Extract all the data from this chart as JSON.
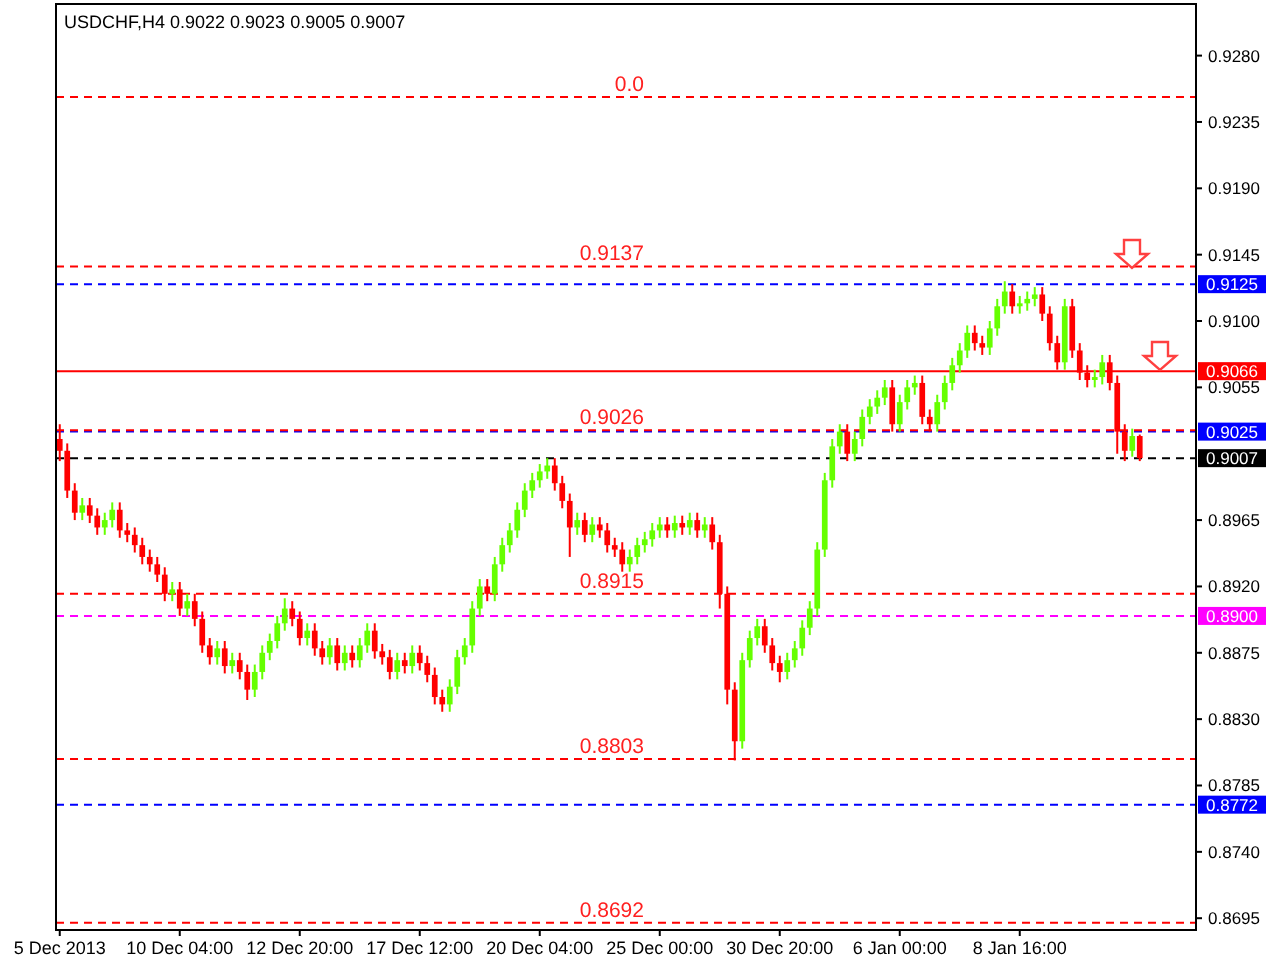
{
  "chart_data": {
    "type": "candlestick",
    "title": "USDCHF,H4  0.9022 0.9023 0.9005 0.9007",
    "categories": [
      "5 Dec 2013",
      null,
      null,
      null,
      null,
      null,
      null,
      null,
      null,
      null,
      null,
      null,
      null,
      null,
      null,
      null,
      "10 Dec 04:00",
      null,
      null,
      null,
      null,
      null,
      null,
      null,
      null,
      null,
      null,
      null,
      null,
      null,
      null,
      null,
      "12 Dec 20:00",
      null,
      null,
      null,
      null,
      null,
      null,
      null,
      null,
      null,
      null,
      null,
      null,
      null,
      null,
      null,
      "17 Dec 12:00",
      null,
      null,
      null,
      null,
      null,
      null,
      null,
      null,
      null,
      null,
      null,
      null,
      null,
      null,
      null,
      "20 Dec 04:00",
      null,
      null,
      null,
      null,
      null,
      null,
      null,
      null,
      null,
      null,
      null,
      null,
      null,
      null,
      null,
      "25 Dec 00:00",
      null,
      null,
      null,
      null,
      null,
      null,
      null,
      null,
      null,
      null,
      null,
      null,
      null,
      null,
      null,
      "30 Dec 20:00",
      null,
      null,
      null,
      null,
      null,
      null,
      null,
      null,
      null,
      null,
      null,
      null,
      null,
      null,
      null,
      "6 Jan 00:00",
      null,
      null,
      null,
      null,
      null,
      null,
      null,
      null,
      null,
      null,
      null,
      null,
      null,
      null,
      null,
      "8 Jan 16:00",
      null,
      null,
      null,
      null,
      null,
      null,
      null,
      null,
      null,
      null,
      null,
      null,
      null,
      null,
      null,
      null
    ],
    "ohlc": [
      [
        0.902,
        0.903,
        0.9005,
        0.9012
      ],
      [
        0.9012,
        0.9017,
        0.898,
        0.8985
      ],
      [
        0.8985,
        0.899,
        0.8965,
        0.897
      ],
      [
        0.897,
        0.898,
        0.8965,
        0.8975
      ],
      [
        0.8975,
        0.898,
        0.8963,
        0.8968
      ],
      [
        0.8968,
        0.8973,
        0.8955,
        0.896
      ],
      [
        0.896,
        0.897,
        0.8955,
        0.8965
      ],
      [
        0.8965,
        0.8977,
        0.896,
        0.8972
      ],
      [
        0.8972,
        0.8977,
        0.8953,
        0.8958
      ],
      [
        0.8958,
        0.8963,
        0.895,
        0.8955
      ],
      [
        0.8955,
        0.896,
        0.8943,
        0.8948
      ],
      [
        0.8948,
        0.8953,
        0.8935,
        0.894
      ],
      [
        0.894,
        0.8945,
        0.893,
        0.8935
      ],
      [
        0.8935,
        0.894,
        0.8923,
        0.8928
      ],
      [
        0.8928,
        0.8933,
        0.891,
        0.8915
      ],
      [
        0.8915,
        0.8923,
        0.891,
        0.8918
      ],
      [
        0.8918,
        0.8923,
        0.89,
        0.8905
      ],
      [
        0.8905,
        0.8915,
        0.89,
        0.891
      ],
      [
        0.891,
        0.8915,
        0.8893,
        0.8898
      ],
      [
        0.8898,
        0.8903,
        0.8875,
        0.888
      ],
      [
        0.888,
        0.8885,
        0.8867,
        0.8872
      ],
      [
        0.8872,
        0.8883,
        0.8867,
        0.8878
      ],
      [
        0.8878,
        0.8883,
        0.8861,
        0.8866
      ],
      [
        0.8866,
        0.8875,
        0.8861,
        0.887
      ],
      [
        0.887,
        0.8875,
        0.8857,
        0.8862
      ],
      [
        0.8862,
        0.8867,
        0.8843,
        0.885
      ],
      [
        0.885,
        0.8867,
        0.8845,
        0.8862
      ],
      [
        0.8862,
        0.888,
        0.8857,
        0.8875
      ],
      [
        0.8875,
        0.8888,
        0.887,
        0.8883
      ],
      [
        0.8883,
        0.89,
        0.8878,
        0.8895
      ],
      [
        0.8895,
        0.8912,
        0.889,
        0.8905
      ],
      [
        0.8905,
        0.891,
        0.8893,
        0.8898
      ],
      [
        0.8898,
        0.8903,
        0.888,
        0.8885
      ],
      [
        0.8885,
        0.8895,
        0.888,
        0.889
      ],
      [
        0.889,
        0.8895,
        0.8873,
        0.8878
      ],
      [
        0.8878,
        0.8883,
        0.8867,
        0.8872
      ],
      [
        0.8872,
        0.8885,
        0.8867,
        0.888
      ],
      [
        0.888,
        0.8885,
        0.8863,
        0.8868
      ],
      [
        0.8868,
        0.888,
        0.8863,
        0.8875
      ],
      [
        0.8875,
        0.888,
        0.8865,
        0.887
      ],
      [
        0.887,
        0.8885,
        0.8865,
        0.888
      ],
      [
        0.888,
        0.8895,
        0.8875,
        0.889
      ],
      [
        0.889,
        0.8895,
        0.8871,
        0.8876
      ],
      [
        0.8876,
        0.8881,
        0.8867,
        0.8872
      ],
      [
        0.8872,
        0.8877,
        0.8857,
        0.8862
      ],
      [
        0.8862,
        0.8875,
        0.8857,
        0.887
      ],
      [
        0.887,
        0.8875,
        0.8861,
        0.8866
      ],
      [
        0.8866,
        0.888,
        0.8861,
        0.8875
      ],
      [
        0.8875,
        0.888,
        0.8863,
        0.8868
      ],
      [
        0.8868,
        0.8873,
        0.8855,
        0.886
      ],
      [
        0.886,
        0.8865,
        0.884,
        0.8845
      ],
      [
        0.8845,
        0.885,
        0.8835,
        0.884
      ],
      [
        0.884,
        0.8857,
        0.8835,
        0.8852
      ],
      [
        0.8852,
        0.8877,
        0.8847,
        0.8872
      ],
      [
        0.8872,
        0.8885,
        0.8867,
        0.888
      ],
      [
        0.888,
        0.891,
        0.8875,
        0.8905
      ],
      [
        0.8905,
        0.8925,
        0.89,
        0.892
      ],
      [
        0.892,
        0.8925,
        0.891,
        0.8915
      ],
      [
        0.8915,
        0.894,
        0.891,
        0.8935
      ],
      [
        0.8935,
        0.8953,
        0.893,
        0.8948
      ],
      [
        0.8948,
        0.8963,
        0.8943,
        0.8958
      ],
      [
        0.8958,
        0.8977,
        0.8953,
        0.8972
      ],
      [
        0.8972,
        0.899,
        0.8967,
        0.8985
      ],
      [
        0.8985,
        0.8997,
        0.898,
        0.8992
      ],
      [
        0.8992,
        0.9003,
        0.8987,
        0.8998
      ],
      [
        0.8998,
        0.9007,
        0.8993,
        0.9002
      ],
      [
        0.9002,
        0.9007,
        0.8985,
        0.899
      ],
      [
        0.899,
        0.8995,
        0.8973,
        0.8978
      ],
      [
        0.8978,
        0.8983,
        0.894,
        0.896
      ],
      [
        0.896,
        0.897,
        0.8955,
        0.8965
      ],
      [
        0.8965,
        0.897,
        0.895,
        0.8955
      ],
      [
        0.8955,
        0.8967,
        0.895,
        0.8962
      ],
      [
        0.8962,
        0.8967,
        0.8953,
        0.8958
      ],
      [
        0.8958,
        0.8963,
        0.8943,
        0.8948
      ],
      [
        0.8948,
        0.8953,
        0.894,
        0.8945
      ],
      [
        0.8945,
        0.895,
        0.893,
        0.8935
      ],
      [
        0.8935,
        0.8945,
        0.893,
        0.894
      ],
      [
        0.894,
        0.8953,
        0.8935,
        0.8948
      ],
      [
        0.8948,
        0.8957,
        0.8943,
        0.8952
      ],
      [
        0.8952,
        0.8963,
        0.8947,
        0.8958
      ],
      [
        0.8958,
        0.8967,
        0.8953,
        0.8962
      ],
      [
        0.8962,
        0.8967,
        0.8953,
        0.8958
      ],
      [
        0.8958,
        0.8968,
        0.8953,
        0.8963
      ],
      [
        0.8963,
        0.8968,
        0.8955,
        0.896
      ],
      [
        0.896,
        0.897,
        0.8955,
        0.8965
      ],
      [
        0.8965,
        0.897,
        0.8953,
        0.8958
      ],
      [
        0.8958,
        0.8967,
        0.8953,
        0.8962
      ],
      [
        0.8962,
        0.8967,
        0.8945,
        0.895
      ],
      [
        0.895,
        0.8955,
        0.8905,
        0.8915
      ],
      [
        0.8915,
        0.892,
        0.884,
        0.885
      ],
      [
        0.885,
        0.8855,
        0.8802,
        0.8815
      ],
      [
        0.8815,
        0.8875,
        0.881,
        0.887
      ],
      [
        0.887,
        0.889,
        0.8865,
        0.8885
      ],
      [
        0.8885,
        0.8898,
        0.888,
        0.8893
      ],
      [
        0.8893,
        0.8898,
        0.8875,
        0.888
      ],
      [
        0.888,
        0.8885,
        0.8863,
        0.8868
      ],
      [
        0.8868,
        0.8873,
        0.8855,
        0.8862
      ],
      [
        0.8862,
        0.8875,
        0.8857,
        0.887
      ],
      [
        0.887,
        0.8883,
        0.8865,
        0.8878
      ],
      [
        0.8878,
        0.8897,
        0.8873,
        0.8892
      ],
      [
        0.8892,
        0.891,
        0.8887,
        0.8905
      ],
      [
        0.8905,
        0.895,
        0.89,
        0.8945
      ],
      [
        0.8945,
        0.8997,
        0.894,
        0.8992
      ],
      [
        0.8992,
        0.902,
        0.8987,
        0.9015
      ],
      [
        0.9015,
        0.903,
        0.901,
        0.9025
      ],
      [
        0.9025,
        0.903,
        0.9005,
        0.901
      ],
      [
        0.901,
        0.9025,
        0.9005,
        0.902
      ],
      [
        0.902,
        0.904,
        0.9015,
        0.9035
      ],
      [
        0.9035,
        0.9047,
        0.903,
        0.9042
      ],
      [
        0.9042,
        0.9053,
        0.9037,
        0.9048
      ],
      [
        0.9048,
        0.906,
        0.9043,
        0.9055
      ],
      [
        0.9055,
        0.906,
        0.9025,
        0.903
      ],
      [
        0.903,
        0.905,
        0.9025,
        0.9045
      ],
      [
        0.9045,
        0.906,
        0.904,
        0.9055
      ],
      [
        0.9055,
        0.9063,
        0.905,
        0.9058
      ],
      [
        0.9058,
        0.9063,
        0.903,
        0.9035
      ],
      [
        0.9035,
        0.904,
        0.9025,
        0.903
      ],
      [
        0.903,
        0.905,
        0.9025,
        0.9045
      ],
      [
        0.9045,
        0.9063,
        0.904,
        0.9058
      ],
      [
        0.9058,
        0.9075,
        0.9053,
        0.907
      ],
      [
        0.907,
        0.9085,
        0.9065,
        0.908
      ],
      [
        0.908,
        0.9097,
        0.9075,
        0.9092
      ],
      [
        0.9092,
        0.9097,
        0.908,
        0.9085
      ],
      [
        0.9085,
        0.909,
        0.9077,
        0.9082
      ],
      [
        0.9082,
        0.91,
        0.9077,
        0.9095
      ],
      [
        0.9095,
        0.9115,
        0.909,
        0.911
      ],
      [
        0.911,
        0.9127,
        0.9105,
        0.912
      ],
      [
        0.912,
        0.9125,
        0.9105,
        0.911
      ],
      [
        0.911,
        0.9117,
        0.9105,
        0.9112
      ],
      [
        0.9112,
        0.912,
        0.9107,
        0.9115
      ],
      [
        0.9115,
        0.9123,
        0.911,
        0.9118
      ],
      [
        0.9118,
        0.9123,
        0.91,
        0.9105
      ],
      [
        0.9105,
        0.911,
        0.908,
        0.9085
      ],
      [
        0.9085,
        0.909,
        0.9067,
        0.9072
      ],
      [
        0.9072,
        0.9115,
        0.9067,
        0.911
      ],
      [
        0.911,
        0.9115,
        0.9075,
        0.908
      ],
      [
        0.908,
        0.9085,
        0.906,
        0.9065
      ],
      [
        0.9065,
        0.907,
        0.9055,
        0.906
      ],
      [
        0.906,
        0.9067,
        0.9055,
        0.9062
      ],
      [
        0.9062,
        0.9077,
        0.9057,
        0.9072
      ],
      [
        0.9072,
        0.9077,
        0.9053,
        0.9058
      ],
      [
        0.9058,
        0.9063,
        0.901,
        0.9025
      ],
      [
        0.9025,
        0.903,
        0.9005,
        0.9012
      ],
      [
        0.9012,
        0.9027,
        0.9008,
        0.9022
      ],
      [
        0.9022,
        0.9023,
        0.9005,
        0.9007
      ]
    ],
    "ylim": [
      0.8687,
      0.9315
    ],
    "yticks": [
      {
        "value": 0.928,
        "label": "0.9280"
      },
      0.9235,
      {
        "value": 0.919,
        "label": "0.9190"
      },
      0.9145,
      {
        "value": 0.91,
        "label": "0.9100"
      },
      0.9055,
      0.8965,
      {
        "value": 0.892,
        "label": "0.8920"
      },
      0.8875,
      {
        "value": 0.883,
        "label": "0.8830"
      },
      0.8785,
      {
        "value": 0.874,
        "label": "0.8740"
      },
      0.8695
    ],
    "ref_lines": [
      {
        "axis": "y",
        "value": 0.9125,
        "label": "0.9125",
        "color": "#0000ff",
        "line_style": "dashed"
      },
      {
        "axis": "y",
        "value": 0.9066,
        "label": "0.9066",
        "color": "#ff0000",
        "line_style": "solid"
      },
      {
        "axis": "y",
        "value": 0.9025,
        "label": "0.9025",
        "color": "#0000ff",
        "line_style": "dashed"
      },
      {
        "axis": "y",
        "value": 0.9007,
        "label": "0.9007",
        "color": "#000000",
        "line_style": "dashed"
      },
      {
        "axis": "y",
        "value": 0.89,
        "label": "0.8900",
        "color": "#ff00ff",
        "line_style": "dashed"
      },
      {
        "axis": "y",
        "value": 0.8772,
        "label": "0.8772",
        "color": "#0000ff",
        "line_style": "dashed"
      },
      {
        "axis": "y",
        "value": 0.9252,
        "color": "#ff0000",
        "line_style": "dashed"
      },
      {
        "axis": "y",
        "value": 0.9137,
        "color": "#ff0000",
        "line_style": "dashed"
      },
      {
        "axis": "y",
        "value": 0.9026,
        "color": "#ff0000",
        "line_style": "dashed"
      },
      {
        "axis": "y",
        "value": 0.8915,
        "color": "#ff0000",
        "line_style": "dashed"
      },
      {
        "axis": "y",
        "value": 0.8803,
        "color": "#ff0000",
        "line_style": "dashed"
      },
      {
        "axis": "y",
        "value": 0.8692,
        "color": "#ff0000",
        "line_style": "dashed"
      }
    ],
    "annotations": [
      {
        "text": "0.0",
        "y": 0.9252
      },
      {
        "text": "0.9137",
        "y": 0.9137
      },
      {
        "text": "0.9026",
        "y": 0.9026
      },
      {
        "text": "0.8915",
        "y": 0.8915
      },
      {
        "text": "0.8803",
        "y": 0.8803
      },
      {
        "text": "0.8692",
        "y": 0.8692
      }
    ],
    "grid": false
  }
}
